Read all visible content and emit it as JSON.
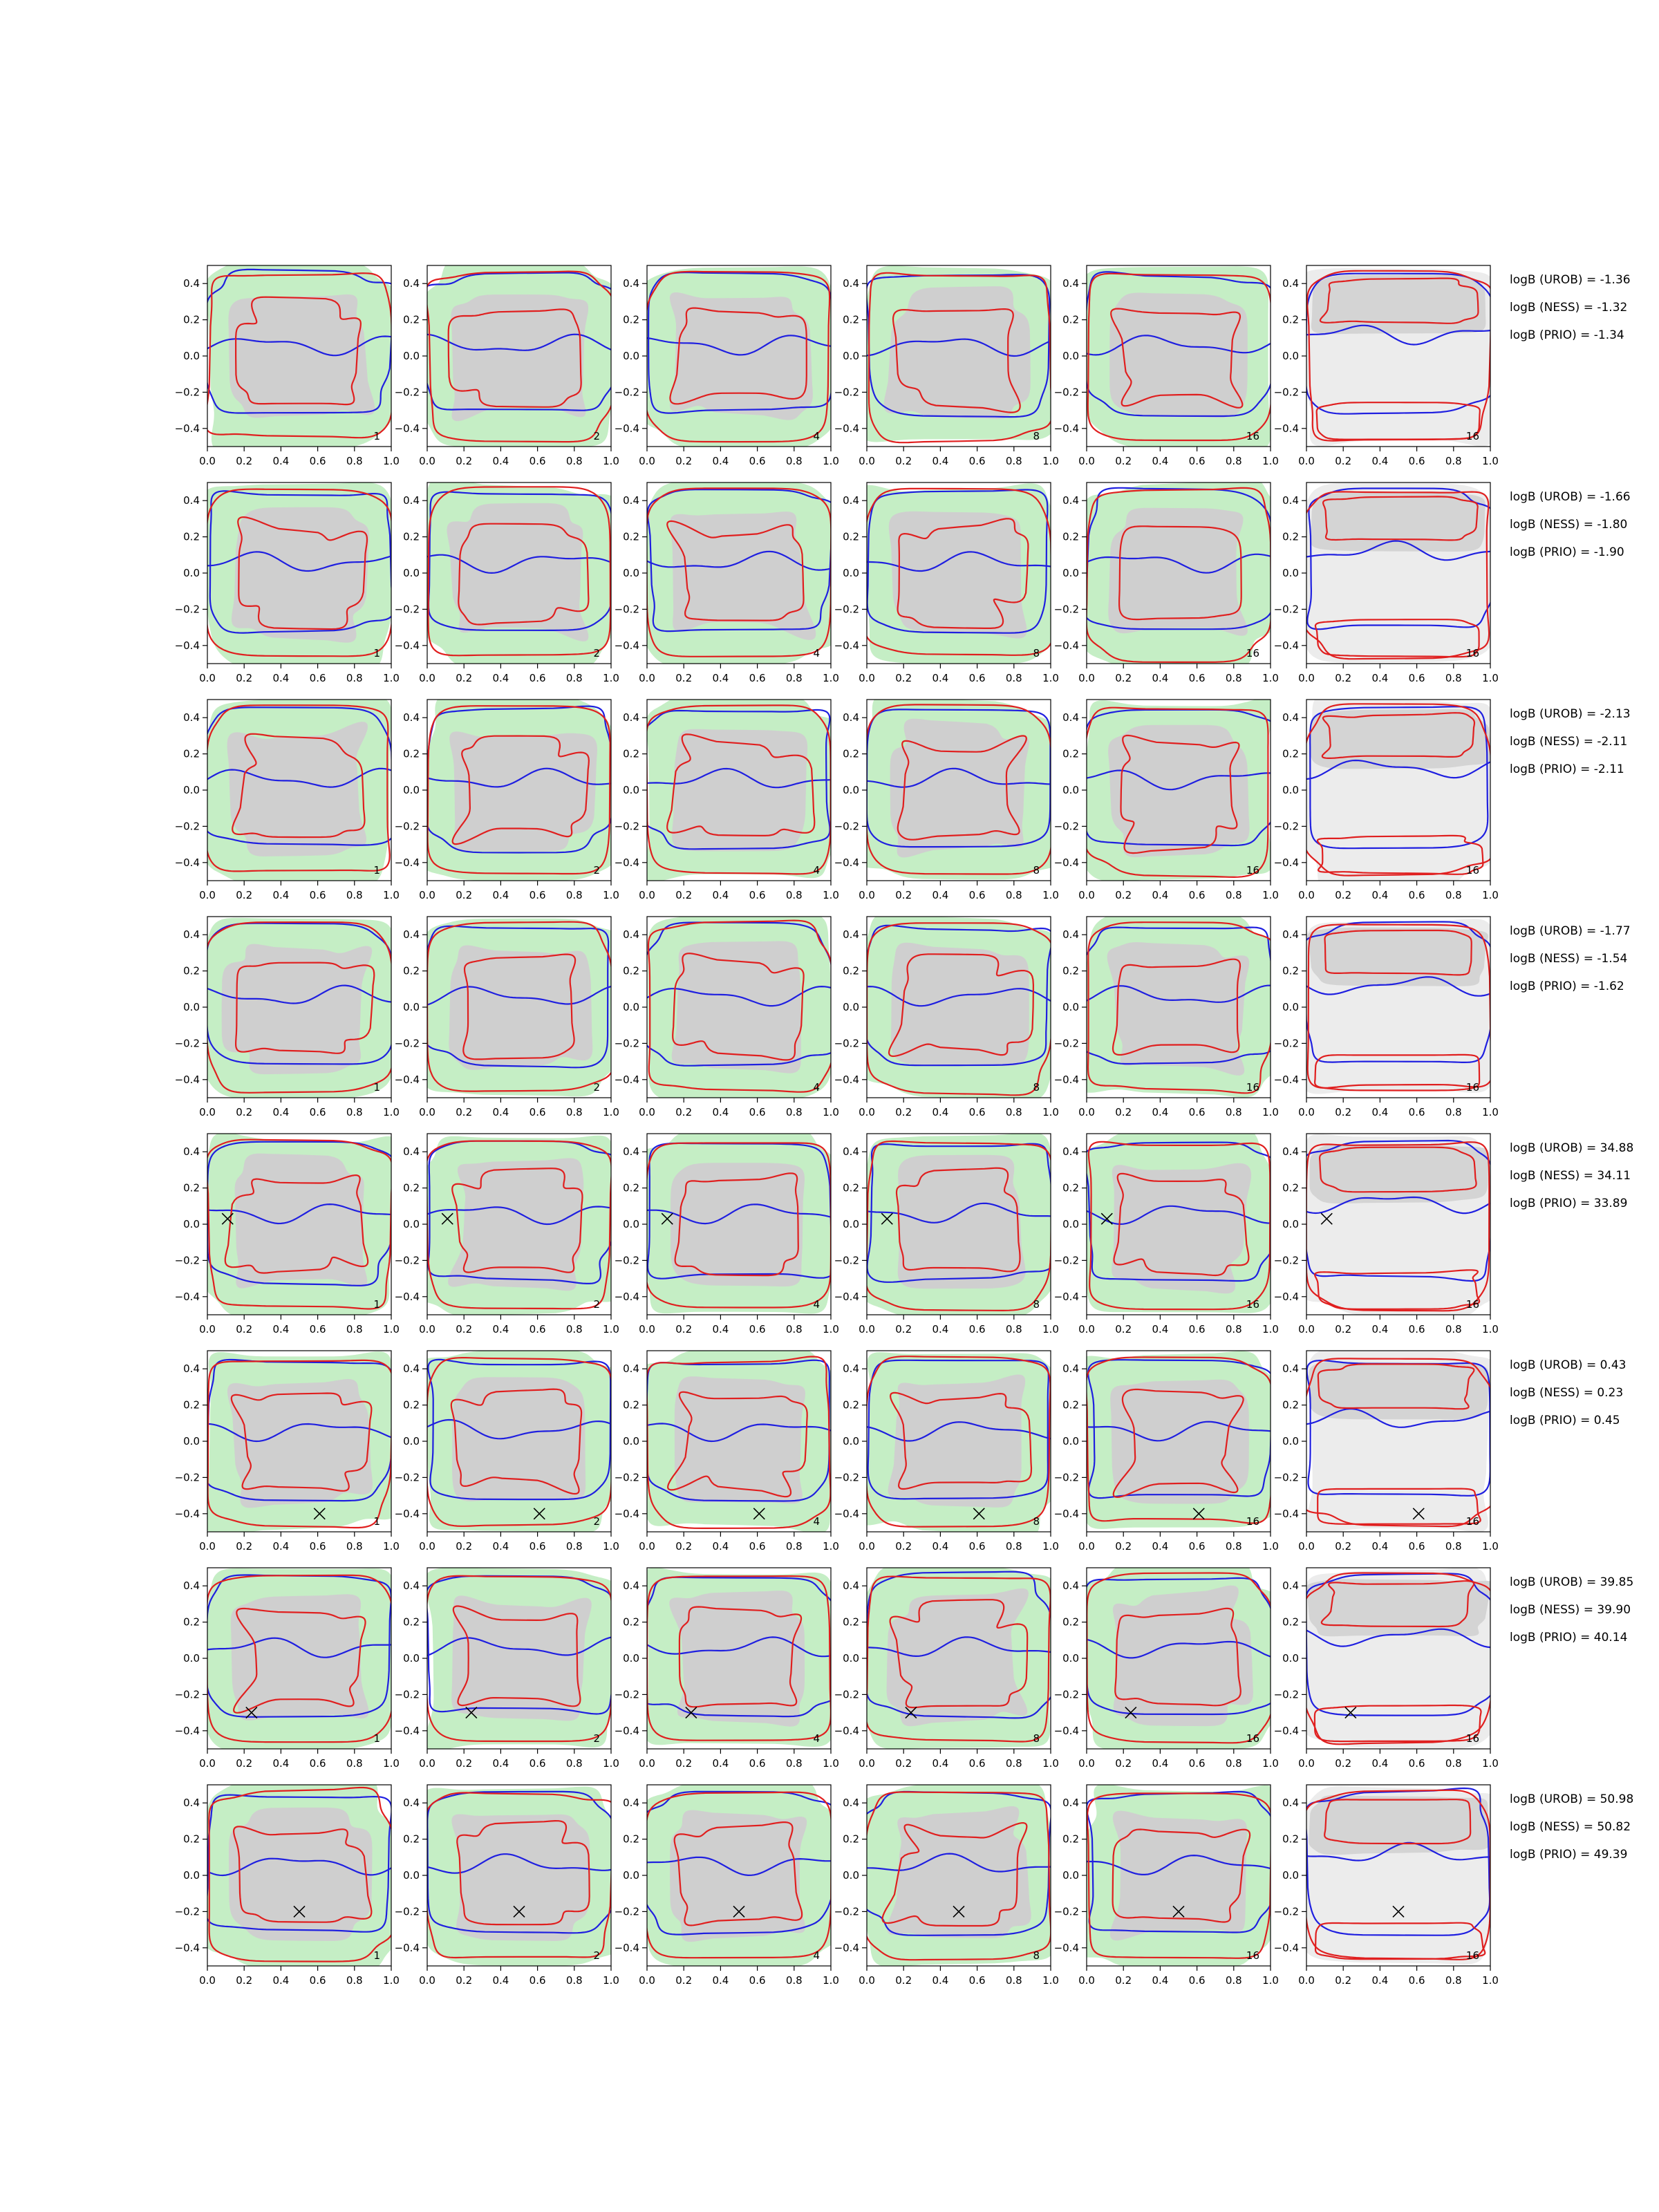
{
  "chart_data": {
    "type": "contour",
    "layout": {
      "rows": 8,
      "cols": 6
    },
    "xlim": [
      0.0,
      1.0
    ],
    "ylim": [
      -0.5,
      0.5
    ],
    "xticks": [
      0.0,
      0.2,
      0.4,
      0.6,
      0.8,
      1.0
    ],
    "yticks": [
      -0.4,
      -0.2,
      0.0,
      0.2,
      0.4
    ],
    "xtick_labels": [
      "0.0",
      "0.2",
      "0.4",
      "0.6",
      "0.8",
      "1.0"
    ],
    "ytick_labels": [
      "−0.4",
      "−0.2",
      "0.0",
      "0.2",
      "0.4"
    ],
    "grid": false,
    "column_labels": [
      "1",
      "2",
      "4",
      "8",
      "16",
      "16"
    ],
    "colors": {
      "fill_outer": "#c5eec5",
      "fill_inner": "#cfcfcf",
      "fill_outer_last": "#ececec",
      "fill_inner_last": "#d4d4d4",
      "contour_blue": "#1f1fe0",
      "contour_red": "#e01f1f",
      "marker": "#000000"
    },
    "marker_symbol": "x",
    "rows": [
      {
        "marker": null,
        "logB": [
          "logB (UROB) = -1.36",
          "logB (NESS) = -1.32",
          "logB (PRIO) = -1.34"
        ]
      },
      {
        "marker": null,
        "logB": [
          "logB (UROB) = -1.66",
          "logB (NESS) = -1.80",
          "logB (PRIO) = -1.90"
        ]
      },
      {
        "marker": null,
        "logB": [
          "logB (UROB) = -2.13",
          "logB (NESS) = -2.11",
          "logB (PRIO) = -2.11"
        ]
      },
      {
        "marker": null,
        "logB": [
          "logB (UROB) = -1.77",
          "logB (NESS) = -1.54",
          "logB (PRIO) = -1.62"
        ]
      },
      {
        "marker": [
          0.11,
          0.03
        ],
        "logB": [
          "logB (UROB) = 34.88",
          "logB (NESS) = 34.11",
          "logB (PRIO) = 33.89"
        ]
      },
      {
        "marker": [
          0.61,
          -0.4
        ],
        "logB": [
          "logB (UROB) = 0.43",
          "logB (NESS) = 0.23",
          "logB (PRIO) = 0.45"
        ]
      },
      {
        "marker": [
          0.24,
          -0.3
        ],
        "logB": [
          "logB (UROB) = 39.85",
          "logB (NESS) = 39.90",
          "logB (PRIO) = 40.14"
        ]
      },
      {
        "marker": [
          0.5,
          -0.2
        ],
        "logB": [
          "logB (UROB) = 50.98",
          "logB (NESS) = 50.82",
          "logB (PRIO) = 49.39"
        ]
      }
    ]
  }
}
